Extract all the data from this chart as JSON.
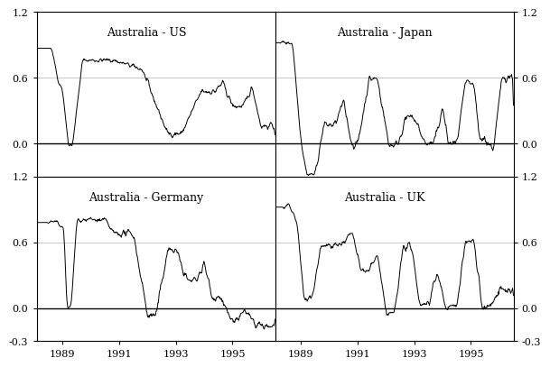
{
  "panels": [
    {
      "label": "Australia - US",
      "row": 0,
      "col": 0
    },
    {
      "label": "Australia - Japan",
      "row": 0,
      "col": 1
    },
    {
      "label": "Australia - Germany",
      "row": 1,
      "col": 0
    },
    {
      "label": "Australia - UK",
      "row": 1,
      "col": 1
    }
  ],
  "ylim": [
    -0.3,
    1.2
  ],
  "yticks_left_top": [
    0.0,
    0.6,
    1.2
  ],
  "yticks_right_top": [
    0.0,
    0.6,
    1.2
  ],
  "yticks_left_bottom": [
    -0.3,
    0.0,
    0.6,
    1.2
  ],
  "yticks_right_bottom": [
    -0.3,
    0.0,
    0.6,
    1.2
  ],
  "xtick_years": [
    1989,
    1991,
    1993,
    1995
  ],
  "year_start": 1988.08,
  "year_end": 1996.5,
  "line_color": "#000000",
  "background_color": "#ffffff",
  "grid_color": "#b0b0b0",
  "border_color": "#000000",
  "label_fontsize": 9,
  "tick_fontsize": 8
}
